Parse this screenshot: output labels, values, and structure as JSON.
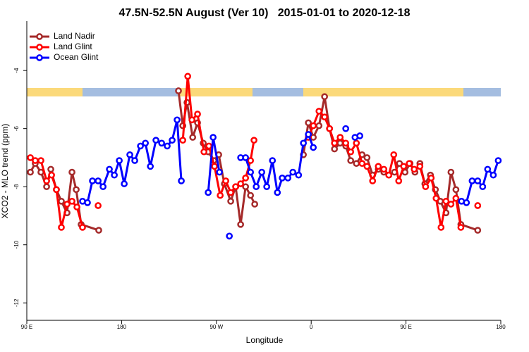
{
  "chart_data": {
    "type": "line",
    "title": "47.5N-52.5N August (Ver 10)   2015-01-01 to 2020-12-18",
    "x_label": "Longitude",
    "y_label": "XCO2 - MLO trend (ppm)",
    "xlim": [
      90,
      540
    ],
    "ylim": [
      -12.6,
      -2.3
    ],
    "xticks": [
      {
        "value": 90,
        "label": "90 E"
      },
      {
        "value": 180,
        "label": "180"
      },
      {
        "value": 270,
        "label": "90 W"
      },
      {
        "value": 360,
        "label": "0"
      },
      {
        "value": 450,
        "label": "90 E"
      },
      {
        "value": 540,
        "label": "180"
      }
    ],
    "yticks": [
      -4,
      -6,
      -8,
      -10,
      -12
    ],
    "legend": "top-left",
    "series": [
      {
        "name": "Land Nadir",
        "color": "#a52a2a",
        "x": [
          93.4,
          98,
          103.4,
          108.8,
          112.8,
          118.1,
          122.8,
          128.2,
          132.9,
          136.9,
          141.6,
          158.3,
          null,
          234,
          238.1,
          242.1,
          247.5,
          252.1,
          257.5,
          262.2,
          267.6,
          272.2,
          277.6,
          283.6,
          288.3,
          293,
          297.7,
          302.4,
          306.4,
          null,
          352.6,
          357.3,
          362,
          367.4,
          372.7,
          377.4,
          382.1,
          387.5,
          392.8,
          397.5,
          402.9,
          408.3,
          413,
          418.3,
          423.7,
          429,
          433.7,
          439.1,
          443.8,
          449.1,
          453.8,
          458.5,
          463.2,
          467.9,
          473.2,
          477.9,
          482.6,
          488,
          492.7,
          497.4,
          502.1,
          518.1
        ],
        "values": [
          -7.5,
          -7.2,
          -7.5,
          -8.0,
          -7.4,
          -8.1,
          -8.5,
          -8.9,
          -7.5,
          -8.1,
          -9.3,
          -9.5,
          null,
          -4.7,
          -5.9,
          -5.1,
          -6.3,
          -5.8,
          -6.5,
          -6.8,
          -7.1,
          -6.9,
          -7.9,
          -8.5,
          -8.0,
          -9.3,
          -8.0,
          -8.3,
          -8.6,
          null,
          -6.9,
          -5.8,
          -6.3,
          -5.9,
          -4.9,
          -6.0,
          -6.7,
          -6.5,
          -6.6,
          -7.1,
          -7.2,
          -6.9,
          -7.0,
          -7.6,
          -7.4,
          -7.5,
          -7.6,
          -7.5,
          -7.2,
          -7.5,
          -7.2,
          -7.5,
          -7.2,
          -7.9,
          -7.6,
          -8.1,
          -8.5,
          -8.9,
          -7.5,
          -8.1,
          -9.3,
          -9.5
        ]
      },
      {
        "name": "Land Glint",
        "color": "#ff0000",
        "x": [
          93.4,
          98,
          103.4,
          108.8,
          113.5,
          118.1,
          122.8,
          128.2,
          132.9,
          137.6,
          142.9,
          null,
          157.7,
          null,
          238.1,
          242.8,
          246.8,
          252.1,
          258.2,
          262.9,
          268.2,
          273.6,
          278.9,
          283.6,
          288.3,
          293,
          297.7,
          302.4,
          305.7,
          null,
          357.3,
          362,
          367.4,
          372.7,
          377.4,
          382.1,
          387.5,
          392.8,
          397.5,
          402.9,
          408.3,
          413,
          418.3,
          423.7,
          429,
          433.7,
          438.4,
          443.1,
          447.8,
          453.1,
          457.8,
          463.2,
          468.6,
          473.9,
          478.6,
          483.3,
          488,
          492.7,
          497.4,
          502.1,
          null,
          518.1
        ],
        "values": [
          -7.0,
          -7.1,
          -7.1,
          -7.8,
          -7.6,
          -8.1,
          -9.4,
          -8.6,
          -8.5,
          -8.7,
          -9.4,
          null,
          -8.65,
          null,
          -6.4,
          -4.2,
          -5.7,
          -5.5,
          -6.8,
          -6.6,
          -7.3,
          -8.3,
          -7.8,
          -8.2,
          -8.0,
          -7.9,
          -7.7,
          -7.1,
          -6.4,
          null,
          -6.3,
          -5.9,
          -5.4,
          -5.6,
          -6.0,
          -6.5,
          -6.3,
          -6.5,
          -6.8,
          -6.5,
          -7.2,
          -7.3,
          -7.8,
          -7.3,
          -7.4,
          -7.6,
          -6.9,
          -7.8,
          -7.3,
          -7.2,
          -7.4,
          -7.3,
          -8.0,
          -7.7,
          -8.4,
          -9.4,
          -8.5,
          -8.6,
          -8.4,
          -9.4,
          null,
          -8.65
        ]
      },
      {
        "name": "Ocean Glint",
        "color": "#0000ff",
        "x": [
          142.9,
          147.6,
          152.3,
          157.7,
          162.4,
          168.4,
          173.1,
          177.8,
          182.5,
          187.8,
          192.5,
          197.9,
          202.6,
          207.3,
          212.6,
          218,
          223.3,
          228,
          232.7,
          236.7,
          null,
          262.2,
          266.9,
          272.9,
          null,
          282.3,
          null,
          293,
          297.7,
          302.4,
          307.8,
          313.1,
          317.8,
          323.2,
          327.9,
          332.5,
          337.9,
          342.6,
          348,
          352.6,
          357.3,
          362,
          null,
          392.8,
          null,
          401.6,
          406.2,
          null,
          502.7,
          507.4,
          512.8,
          518.1,
          522.8,
          527.5,
          532.9,
          537.6
        ],
        "values": [
          -8.5,
          -8.55,
          -7.8,
          -7.8,
          -8.0,
          -7.4,
          -7.6,
          -7.1,
          -7.9,
          -6.9,
          -7.1,
          -6.6,
          -6.5,
          -7.3,
          -6.4,
          -6.5,
          -6.6,
          -6.4,
          -5.7,
          -7.8,
          null,
          -8.2,
          -6.3,
          -7.5,
          null,
          -9.7,
          null,
          -7.0,
          -7.0,
          -7.5,
          -8.0,
          -7.5,
          -8.0,
          -7.1,
          -8.2,
          -7.7,
          -7.7,
          -7.5,
          -7.6,
          -6.5,
          -6.2,
          -6.65,
          null,
          -6.0,
          null,
          -6.3,
          -6.25,
          null,
          -8.5,
          -8.55,
          -7.8,
          -7.8,
          -8.0,
          -7.4,
          -7.6,
          -7.1
        ]
      }
    ]
  }
}
